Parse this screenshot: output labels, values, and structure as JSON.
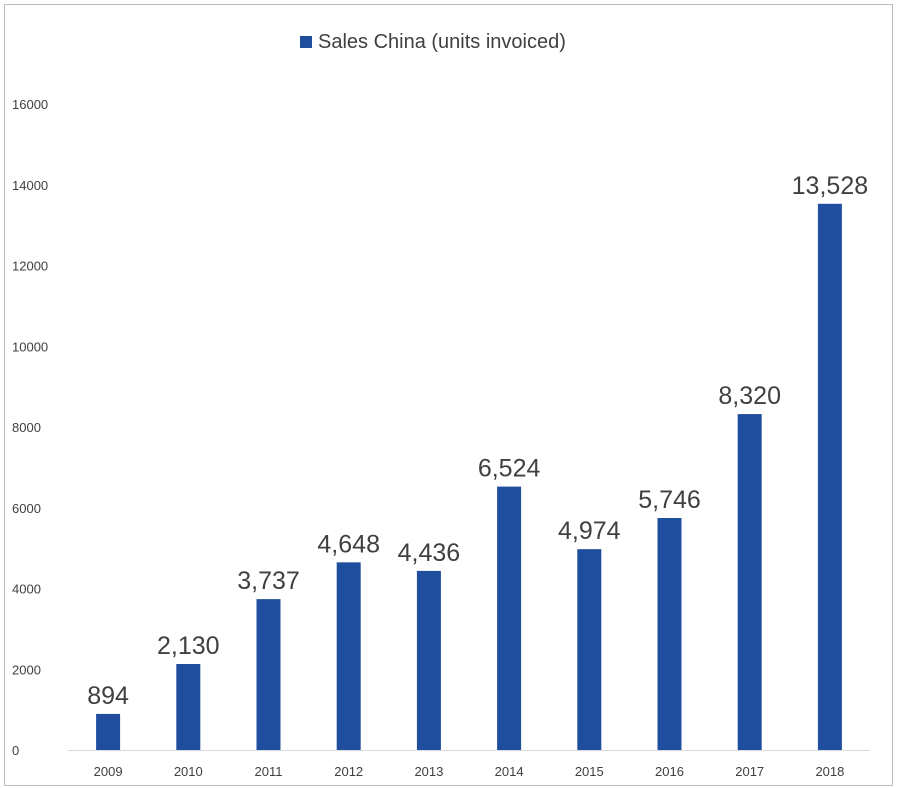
{
  "chart_data": {
    "type": "bar",
    "categories": [
      "2009",
      "2010",
      "2011",
      "2012",
      "2013",
      "2014",
      "2015",
      "2016",
      "2017",
      "2018"
    ],
    "series": [
      {
        "name": "Sales China (units invoiced)",
        "color": "#1f4e9e",
        "values": [
          894,
          2130,
          3737,
          4648,
          4436,
          6524,
          4974,
          5746,
          8320,
          13528
        ],
        "labels": [
          "894",
          "2,130",
          "3,737",
          "4,648",
          "4,436",
          "6,524",
          "4,974",
          "5,746",
          "8,320",
          "13,528"
        ]
      }
    ],
    "ylim": [
      0,
      16000
    ],
    "yticks": [
      "0",
      "2000",
      "4000",
      "6000",
      "8000",
      "10000",
      "12000",
      "14000",
      "16000"
    ],
    "grid": false,
    "legend_position": "top-center"
  }
}
